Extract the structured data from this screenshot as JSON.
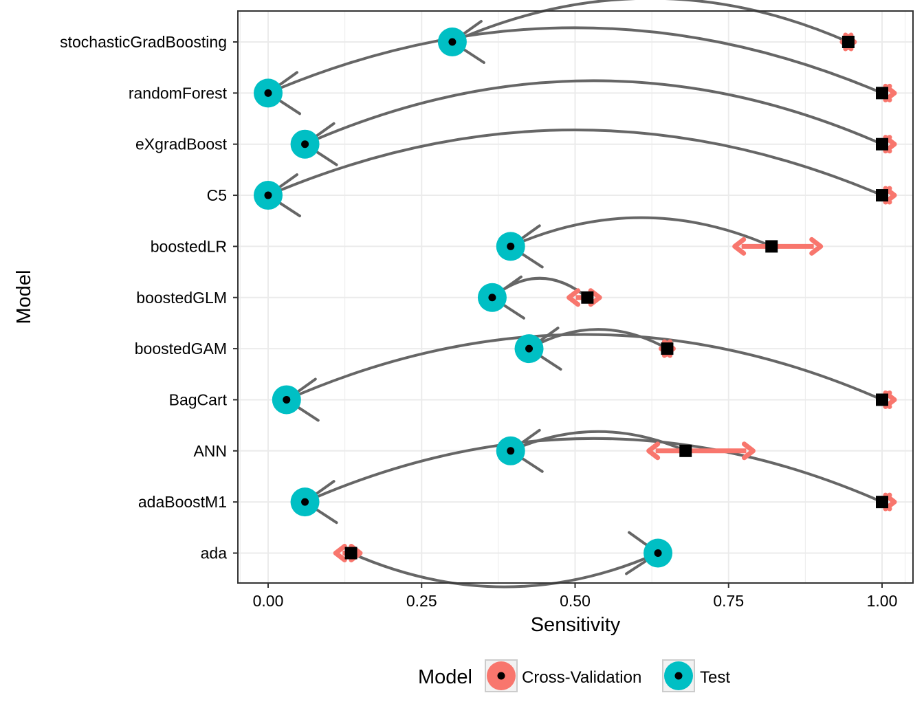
{
  "chart_data": {
    "type": "scatter",
    "xlabel": "Sensitivity",
    "ylabel": "Model",
    "xlim": [
      -0.05,
      1.05
    ],
    "x_ticks": [
      {
        "value": 0.0,
        "label": "0.00"
      },
      {
        "value": 0.25,
        "label": "0.25"
      },
      {
        "value": 0.5,
        "label": "0.50"
      },
      {
        "value": 0.75,
        "label": "0.75"
      },
      {
        "value": 1.0,
        "label": "1.00"
      }
    ],
    "grid": true,
    "legend": {
      "title": "Model",
      "position": "bottom",
      "entries": [
        {
          "name": "Cross-Validation",
          "color": "#F8766D"
        },
        {
          "name": "Test",
          "color": "#00BFC4"
        }
      ]
    },
    "categories": [
      "stochasticGradBoosting",
      "randomForest",
      "eXgradBoost",
      "C5",
      "boostedLR",
      "boostedGLM",
      "boostedGAM",
      "BagCart",
      "ANN",
      "adaBoostM1",
      "ada"
    ],
    "series": [
      {
        "name": "Cross-Validation",
        "color": "#F8766D",
        "values": [
          0.945,
          1.0,
          1.0,
          1.0,
          0.82,
          0.52,
          0.65,
          1.0,
          0.68,
          1.0,
          0.135
        ],
        "lower": [
          0.935,
          1.0,
          1.0,
          1.0,
          0.76,
          0.49,
          0.64,
          1.0,
          0.62,
          1.0,
          0.11
        ],
        "upper": [
          0.955,
          1.0,
          1.0,
          1.0,
          0.9,
          0.54,
          0.66,
          1.0,
          0.79,
          1.0,
          0.15
        ]
      },
      {
        "name": "Test",
        "color": "#00BFC4",
        "values": [
          0.3,
          0.0,
          0.06,
          0.0,
          0.395,
          0.365,
          0.425,
          0.03,
          0.395,
          0.06,
          0.635
        ]
      }
    ],
    "colors": {
      "curve": "#666666",
      "grid": "#EBEBEB",
      "panel_border": "#333333",
      "marker": "#000000"
    }
  }
}
